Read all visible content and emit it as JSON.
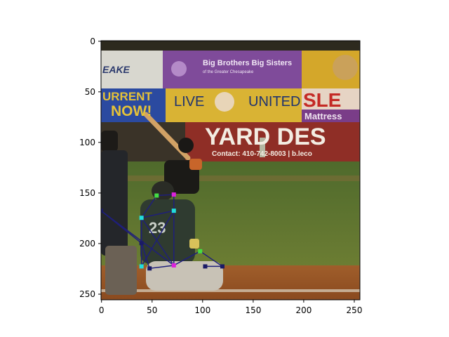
{
  "figure": {
    "x_ticks": [
      "0",
      "50",
      "100",
      "150",
      "200",
      "250"
    ],
    "y_ticks": [
      "0",
      "50",
      "100",
      "150",
      "200",
      "250"
    ],
    "x_range": [
      0,
      256
    ],
    "y_range": [
      0,
      256
    ],
    "y_inverted": true
  },
  "scene": {
    "banner_top_left": "EAKE",
    "banner_big_brothers": "Big Brothers Big Sisters",
    "banner_big_brothers_sub": "of the Greater Chesapeake",
    "banner_current_1": "URRENT",
    "banner_current_2": "NOW!",
    "banner_live": "LIVE",
    "banner_united": "UNITED",
    "banner_sle": "SLE",
    "banner_mattress": "Mattress",
    "banner_yard": "YARD DES",
    "banner_contact": "Contact: 410-742-8003 | b.leco",
    "jersey_number": "23"
  },
  "colors": {
    "pose_line": "#1f1f7a",
    "kp_cyan": "#22dddd",
    "kp_magenta": "#dd22dd",
    "kp_green": "#44dd44",
    "kp_navy": "#1a1a66"
  },
  "pose_keypoints": [
    {
      "id": "k1",
      "x": 0,
      "y": 168,
      "color": "kp_navy"
    },
    {
      "id": "k2",
      "x": 40,
      "y": 175,
      "color": "kp_cyan"
    },
    {
      "id": "k3",
      "x": 55,
      "y": 153,
      "color": "kp_green"
    },
    {
      "id": "k4",
      "x": 72,
      "y": 152,
      "color": "kp_magenta"
    },
    {
      "id": "k5",
      "x": 72,
      "y": 168,
      "color": "kp_cyan"
    },
    {
      "id": "k6",
      "x": 40,
      "y": 200,
      "color": "kp_navy"
    },
    {
      "id": "k7",
      "x": 40,
      "y": 223,
      "color": "kp_cyan"
    },
    {
      "id": "k8",
      "x": 72,
      "y": 222,
      "color": "kp_magenta"
    },
    {
      "id": "k9",
      "x": 48,
      "y": 225,
      "color": "kp_navy"
    },
    {
      "id": "k10",
      "x": 98,
      "y": 208,
      "color": "kp_green"
    },
    {
      "id": "k11",
      "x": 120,
      "y": 223,
      "color": "kp_navy"
    },
    {
      "id": "k12",
      "x": 103,
      "y": 223,
      "color": "kp_navy"
    }
  ],
  "pose_edges": [
    [
      "k1",
      "k6"
    ],
    [
      "k1",
      "k8"
    ],
    [
      "k2",
      "k5"
    ],
    [
      "k2",
      "k7"
    ],
    [
      "k2",
      "k8"
    ],
    [
      "k5",
      "k7"
    ],
    [
      "k5",
      "k8"
    ],
    [
      "k3",
      "k4"
    ],
    [
      "k4",
      "k5"
    ],
    [
      "k3",
      "k2"
    ],
    [
      "k8",
      "k10"
    ],
    [
      "k10",
      "k11"
    ],
    [
      "k11",
      "k12"
    ],
    [
      "k9",
      "k8"
    ],
    [
      "k6",
      "k9"
    ]
  ]
}
